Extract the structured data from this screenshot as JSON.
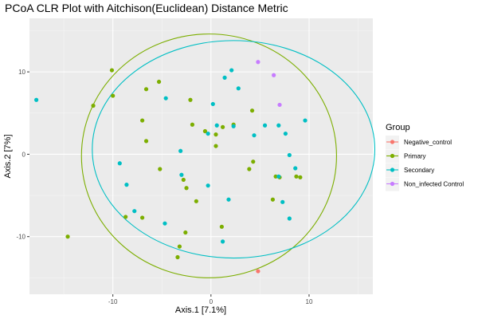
{
  "chart_data": {
    "type": "scatter",
    "title": "PCoA CLR Plot with Aitchison(Euclidean) Distance Metric",
    "xlabel": "Axis.1   [7.1%]",
    "ylabel": "Axis.2   [7%]",
    "xlim": [
      -18.5,
      16.5
    ],
    "ylim": [
      -17,
      16.5
    ],
    "xticks": [
      -10,
      0,
      10
    ],
    "yticks": [
      -10,
      0,
      10
    ],
    "grid": true,
    "legend": {
      "title": "Group",
      "position": "right"
    },
    "colors": {
      "Negative_control": "#F8766D",
      "Primary": "#7CAE00",
      "Secondary": "#00BFC4",
      "Non_infected Control": "#C77CFF"
    },
    "series": [
      {
        "name": "Negative_control",
        "points": [
          [
            4.8,
            -14.2
          ]
        ]
      },
      {
        "name": "Primary",
        "points": [
          [
            -10.1,
            10.2
          ],
          [
            -5.3,
            8.8
          ],
          [
            -6.6,
            7.9
          ],
          [
            -10.0,
            7.1
          ],
          [
            -12.0,
            5.9
          ],
          [
            -2.1,
            6.6
          ],
          [
            -7.0,
            4.1
          ],
          [
            -6.6,
            1.6
          ],
          [
            -1.9,
            3.6
          ],
          [
            -0.6,
            2.8
          ],
          [
            0.5,
            2.4
          ],
          [
            1.2,
            3.3
          ],
          [
            2.3,
            3.6
          ],
          [
            4.2,
            5.3
          ],
          [
            0.5,
            1.0
          ],
          [
            4.3,
            -0.9
          ],
          [
            3.9,
            -1.8
          ],
          [
            6.6,
            -2.7
          ],
          [
            7.0,
            -2.8
          ],
          [
            6.3,
            -5.5
          ],
          [
            8.7,
            -2.7
          ],
          [
            9.1,
            -2.8
          ],
          [
            -5.2,
            -1.8
          ],
          [
            -2.8,
            -3.1
          ],
          [
            -1.5,
            -5.7
          ],
          [
            -2.5,
            -4.1
          ],
          [
            -7.0,
            -7.7
          ],
          [
            -8.7,
            -7.6
          ],
          [
            -14.6,
            -10.0
          ],
          [
            1.1,
            -8.8
          ],
          [
            -2.6,
            -9.5
          ],
          [
            -3.2,
            -11.2
          ],
          [
            -3.4,
            -12.5
          ]
        ]
      },
      {
        "name": "Secondary",
        "points": [
          [
            -17.8,
            6.6
          ],
          [
            -4.6,
            6.8
          ],
          [
            2.1,
            10.2
          ],
          [
            1.4,
            9.3
          ],
          [
            2.8,
            8.0
          ],
          [
            0.2,
            6.1
          ],
          [
            4.4,
            2.3
          ],
          [
            5.5,
            3.5
          ],
          [
            6.9,
            3.5
          ],
          [
            7.6,
            2.5
          ],
          [
            9.6,
            4.1
          ],
          [
            -0.3,
            2.5
          ],
          [
            0.6,
            3.5
          ],
          [
            2.3,
            3.4
          ],
          [
            -3.1,
            0.4
          ],
          [
            -9.3,
            -1.1
          ],
          [
            -3.0,
            -2.5
          ],
          [
            -8.6,
            -3.7
          ],
          [
            -0.3,
            -3.8
          ],
          [
            1.8,
            -5.5
          ],
          [
            8.0,
            -0.1
          ],
          [
            8.6,
            -1.7
          ],
          [
            6.9,
            -2.7
          ],
          [
            7.3,
            -5.8
          ],
          [
            8.0,
            -7.8
          ],
          [
            -7.8,
            -6.9
          ],
          [
            -4.7,
            -8.4
          ],
          [
            1.2,
            -10.6
          ]
        ]
      },
      {
        "name": "Non_infected Control",
        "points": [
          [
            4.8,
            11.2
          ],
          [
            6.4,
            9.6
          ],
          [
            7.0,
            6.0
          ]
        ]
      }
    ],
    "ellipses": [
      {
        "group": "Primary",
        "center": [
          -0.2,
          -0.2
        ],
        "rx": 13.0,
        "ry": 14.8
      },
      {
        "group": "Secondary",
        "center": [
          2.3,
          0.6
        ],
        "rx": 14.4,
        "ry": 13.2
      }
    ]
  }
}
